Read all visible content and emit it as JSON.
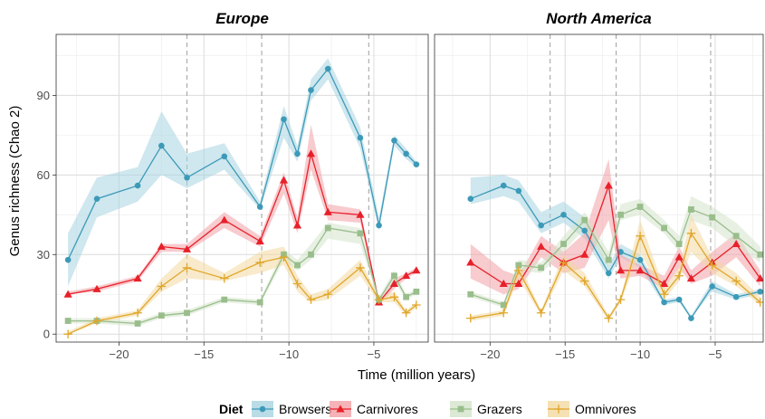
{
  "chart_data": {
    "type": "line",
    "xlabel": "Time (million years)",
    "ylabel": "Genus richness (Chao 2)",
    "xlim": [
      -23.7,
      -1.8
    ],
    "ylim": [
      -3,
      113
    ],
    "x_ticks": [
      -20,
      -15,
      -10,
      -5
    ],
    "x_tick_labels": [
      "−20",
      "−15",
      "−10",
      "−5"
    ],
    "y_ticks": [
      0,
      30,
      60,
      90
    ],
    "y_tick_labels": [
      "0",
      "30",
      "60",
      "90"
    ],
    "grid": true,
    "legend": {
      "title": "Diet",
      "position": "bottom",
      "entries": [
        "Browsers",
        "Carnivores",
        "Grazers",
        "Omnivores"
      ]
    },
    "series_styles": [
      {
        "name": "Browsers",
        "color": "#3C9AB8",
        "fill": "#A8D3E0",
        "marker": "circle"
      },
      {
        "name": "Carnivores",
        "color": "#E8202A",
        "fill": "#F3A0A5",
        "marker": "triangle"
      },
      {
        "name": "Grazers",
        "color": "#99BE8C",
        "fill": "#D3E4CB",
        "marker": "square"
      },
      {
        "name": "Omnivores",
        "color": "#E0A62A",
        "fill": "#F3D9A0",
        "marker": "plus"
      }
    ],
    "panels": [
      {
        "title": "Europe",
        "vlines": [
          -16,
          -11.6,
          -5.3
        ],
        "series": [
          {
            "name": "Browsers",
            "x": [
              -23,
              -21.3,
              -18.9,
              -17.5,
              -16,
              -13.8,
              -11.7,
              -10.3,
              -9.5,
              -8.7,
              -7.7,
              -5.8,
              -4.7,
              -3.8,
              -3.1,
              -2.5
            ],
            "y": [
              28,
              51,
              56,
              71,
              59,
              67,
              48,
              81,
              68,
              92,
              100,
              74,
              41,
              73,
              68,
              64
            ],
            "lower": [
              18,
              44,
              50,
              60,
              55,
              62,
              47,
              74,
              65,
              88,
              96,
              70,
              39,
              71,
              66,
              63
            ],
            "upper": [
              38,
              59,
              63,
              84,
              68,
              72,
              50,
              86,
              71,
              96,
              104,
              78,
              44,
              75,
              70,
              65
            ]
          },
          {
            "name": "Carnivores",
            "x": [
              -23,
              -21.3,
              -18.9,
              -17.5,
              -16,
              -13.8,
              -11.7,
              -10.3,
              -9.5,
              -8.7,
              -7.7,
              -5.8,
              -4.7,
              -3.8,
              -3.1,
              -2.5
            ],
            "y": [
              15,
              17,
              21,
              33,
              32,
              43,
              35,
              58,
              41,
              68,
              46,
              45,
              12,
              19,
              22,
              24
            ],
            "lower": [
              15,
              16,
              20,
              31,
              31,
              40,
              33,
              53,
              38,
              62,
              43,
              42,
              11,
              17,
              21,
              23
            ],
            "upper": [
              16,
              18,
              22,
              34,
              34,
              46,
              37,
              61,
              44,
              79,
              49,
              47,
              13,
              21,
              23,
              25
            ]
          },
          {
            "name": "Grazers",
            "x": [
              -23,
              -21.3,
              -18.9,
              -17.5,
              -16,
              -13.8,
              -11.7,
              -10.3,
              -9.5,
              -8.7,
              -7.7,
              -5.8,
              -4.7,
              -3.8,
              -3.1,
              -2.5
            ],
            "y": [
              5,
              5,
              4,
              7,
              8,
              13,
              12,
              30,
              26,
              30,
              40,
              38,
              13,
              22,
              14,
              16
            ],
            "lower": [
              4,
              4,
              3,
              6,
              7,
              12,
              11,
              28,
              24,
              28,
              36,
              34,
              12,
              20,
              13,
              15
            ],
            "upper": [
              6,
              6,
              5,
              8,
              9,
              14,
              13,
              32,
              28,
              34,
              42,
              40,
              14,
              24,
              15,
              17
            ]
          },
          {
            "name": "Omnivores",
            "x": [
              -23,
              -21.3,
              -18.9,
              -17.5,
              -16,
              -13.8,
              -11.7,
              -10.3,
              -9.5,
              -8.7,
              -7.7,
              -5.8,
              -4.7,
              -3.8,
              -3.1,
              -2.5
            ],
            "y": [
              0,
              5,
              8,
              18,
              25,
              21,
              27,
              29,
              19,
              13,
              15,
              25,
              13,
              14,
              8,
              11
            ],
            "lower": [
              0,
              4,
              7,
              16,
              21,
              20,
              23,
              26,
              16,
              12,
              13,
              22,
              12,
              12,
              7,
              10
            ],
            "upper": [
              1,
              6,
              9,
              21,
              30,
              23,
              31,
              33,
              22,
              15,
              17,
              28,
              14,
              16,
              9,
              12
            ]
          }
        ]
      },
      {
        "title": "North America",
        "vlines": [
          -16,
          -11.6,
          -5.3
        ],
        "series": [
          {
            "name": "Browsers",
            "x": [
              -21.3,
              -19.1,
              -18.1,
              -16.6,
              -15.1,
              -13.7,
              -12.1,
              -11.3,
              -10,
              -8.4,
              -7.4,
              -6.6,
              -5.2,
              -3.6,
              -2
            ],
            "y": [
              51,
              56,
              54,
              41,
              45,
              39,
              23,
              31,
              28,
              12,
              13,
              6,
              18,
              14,
              16
            ],
            "lower": [
              49,
              52,
              50,
              38,
              42,
              36,
              21,
              29,
              25,
              11,
              12,
              6,
              16,
              13,
              15
            ],
            "upper": [
              59,
              60,
              58,
              46,
              50,
              44,
              26,
              34,
              30,
              13,
              14,
              7,
              20,
              15,
              17
            ]
          },
          {
            "name": "Carnivores",
            "x": [
              -21.3,
              -19.1,
              -18.1,
              -16.6,
              -15.1,
              -13.7,
              -12.1,
              -11.3,
              -10,
              -8.4,
              -7.4,
              -6.6,
              -5.2,
              -3.6,
              -2
            ],
            "y": [
              27,
              19,
              19,
              33,
              27,
              30,
              56,
              24,
              24,
              19,
              29,
              21,
              27,
              34,
              21
            ],
            "lower": [
              21,
              15,
              17,
              29,
              23,
              25,
              43,
              21,
              22,
              17,
              25,
              19,
              22,
              29,
              18
            ],
            "upper": [
              34,
              24,
              22,
              37,
              31,
              38,
              66,
              30,
              26,
              22,
              33,
              24,
              31,
              38,
              24
            ]
          },
          {
            "name": "Grazers",
            "x": [
              -21.3,
              -19.1,
              -18.1,
              -16.6,
              -15.1,
              -13.7,
              -12.1,
              -11.3,
              -10,
              -8.4,
              -7.4,
              -6.6,
              -5.2,
              -3.6,
              -2
            ],
            "y": [
              15,
              11,
              26,
              25,
              34,
              43,
              28,
              45,
              48,
              40,
              34,
              47,
              44,
              37,
              30
            ],
            "lower": [
              14,
              10,
              24,
              23,
              31,
              40,
              25,
              43,
              45,
              38,
              31,
              43,
              40,
              33,
              27
            ],
            "upper": [
              16,
              12,
              28,
              27,
              37,
              46,
              31,
              49,
              51,
              43,
              37,
              52,
              48,
              42,
              33
            ]
          },
          {
            "name": "Omnivores",
            "x": [
              -21.3,
              -19.1,
              -18.1,
              -16.6,
              -15.1,
              -13.7,
              -12.1,
              -11.3,
              -10,
              -8.4,
              -7.4,
              -6.6,
              -5.2,
              -3.6,
              -2
            ],
            "y": [
              6,
              8,
              24,
              8,
              27,
              20,
              6,
              13,
              37,
              15,
              22,
              38,
              26,
              20,
              12
            ],
            "lower": [
              5,
              7,
              21,
              7,
              24,
              18,
              5,
              12,
              31,
              13,
              20,
              31,
              23,
              18,
              11
            ],
            "upper": [
              7,
              9,
              27,
              9,
              30,
              23,
              7,
              14,
              43,
              17,
              25,
              45,
              29,
              23,
              14
            ]
          }
        ]
      }
    ]
  }
}
